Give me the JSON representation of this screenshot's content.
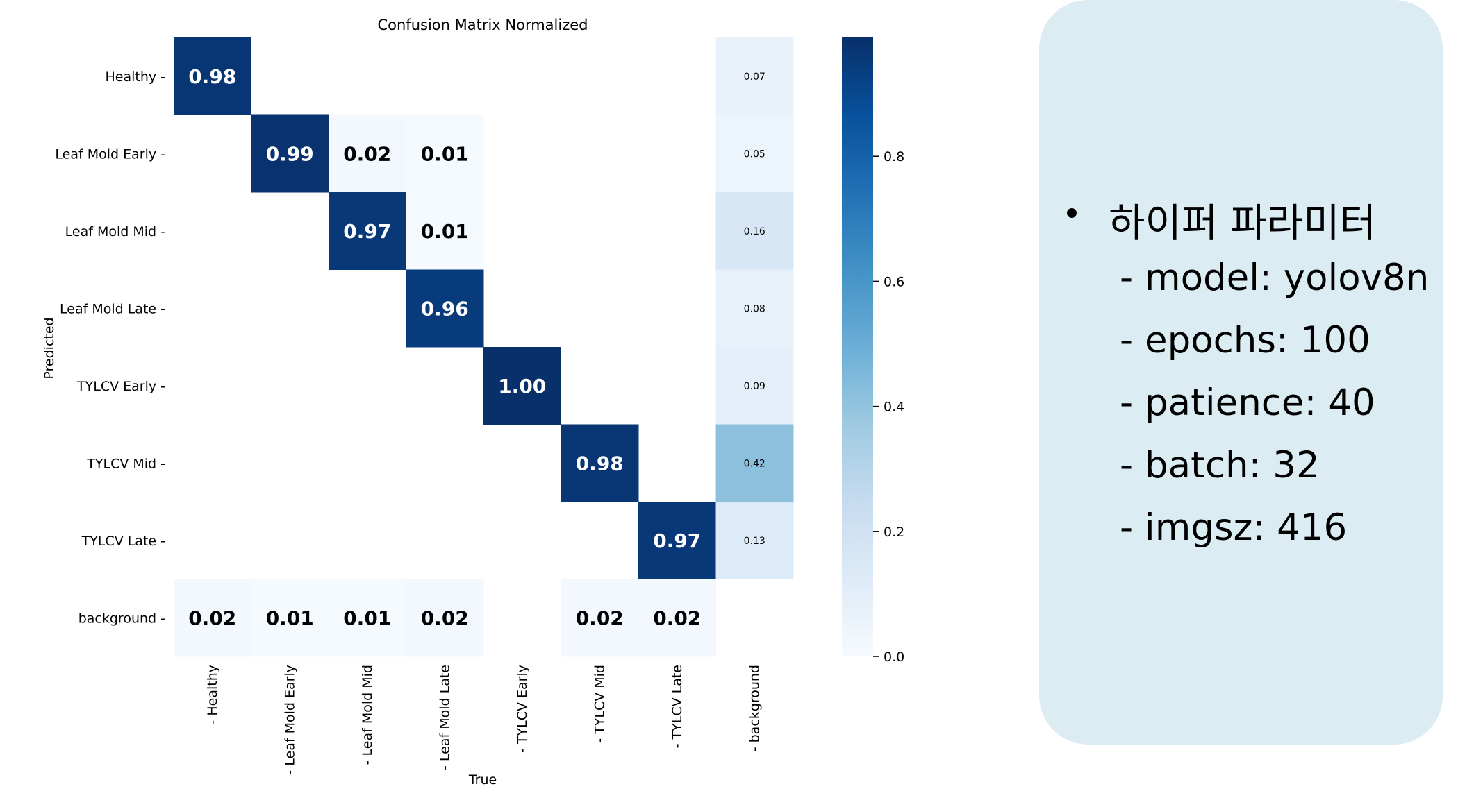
{
  "chart_data": {
    "type": "heatmap",
    "title": "Confusion Matrix Normalized",
    "xlabel": "True",
    "ylabel": "Predicted",
    "x_categories": [
      "Healthy",
      "Leaf Mold Early",
      "Leaf Mold Mid",
      "Leaf Mold Late",
      "TYLCV Early",
      "TYLCV Mid",
      "TYLCV Late",
      "background"
    ],
    "y_categories": [
      "Healthy",
      "Leaf Mold Early",
      "Leaf Mold Mid",
      "Leaf Mold Late",
      "TYLCV Early",
      "TYLCV Mid",
      "TYLCV Late",
      "background"
    ],
    "values": [
      [
        0.98,
        null,
        null,
        null,
        null,
        null,
        null,
        0.07
      ],
      [
        null,
        0.99,
        0.02,
        0.01,
        null,
        null,
        null,
        0.05
      ],
      [
        null,
        null,
        0.97,
        0.01,
        null,
        null,
        null,
        0.16
      ],
      [
        null,
        null,
        null,
        0.96,
        null,
        null,
        null,
        0.08
      ],
      [
        null,
        null,
        null,
        null,
        1.0,
        null,
        null,
        0.09
      ],
      [
        null,
        null,
        null,
        null,
        null,
        0.98,
        null,
        0.42
      ],
      [
        null,
        null,
        null,
        null,
        null,
        null,
        0.97,
        0.13
      ],
      [
        0.02,
        0.01,
        0.01,
        0.02,
        null,
        0.02,
        0.02,
        null
      ]
    ],
    "colorbar": {
      "range": [
        0,
        1
      ],
      "ticks": [
        "0.0",
        "0.2",
        "0.4",
        "0.6",
        "0.8"
      ],
      "tick_values": [
        0,
        0.2,
        0.4,
        0.6,
        0.8
      ],
      "colormap": "Blues"
    }
  },
  "panel": {
    "heading": "하이퍼 파라미터",
    "params": [
      "- model: yolov8n",
      "- epochs: 100",
      "- patience: 40",
      "- batch: 32",
      "- imgsz: 416"
    ]
  }
}
